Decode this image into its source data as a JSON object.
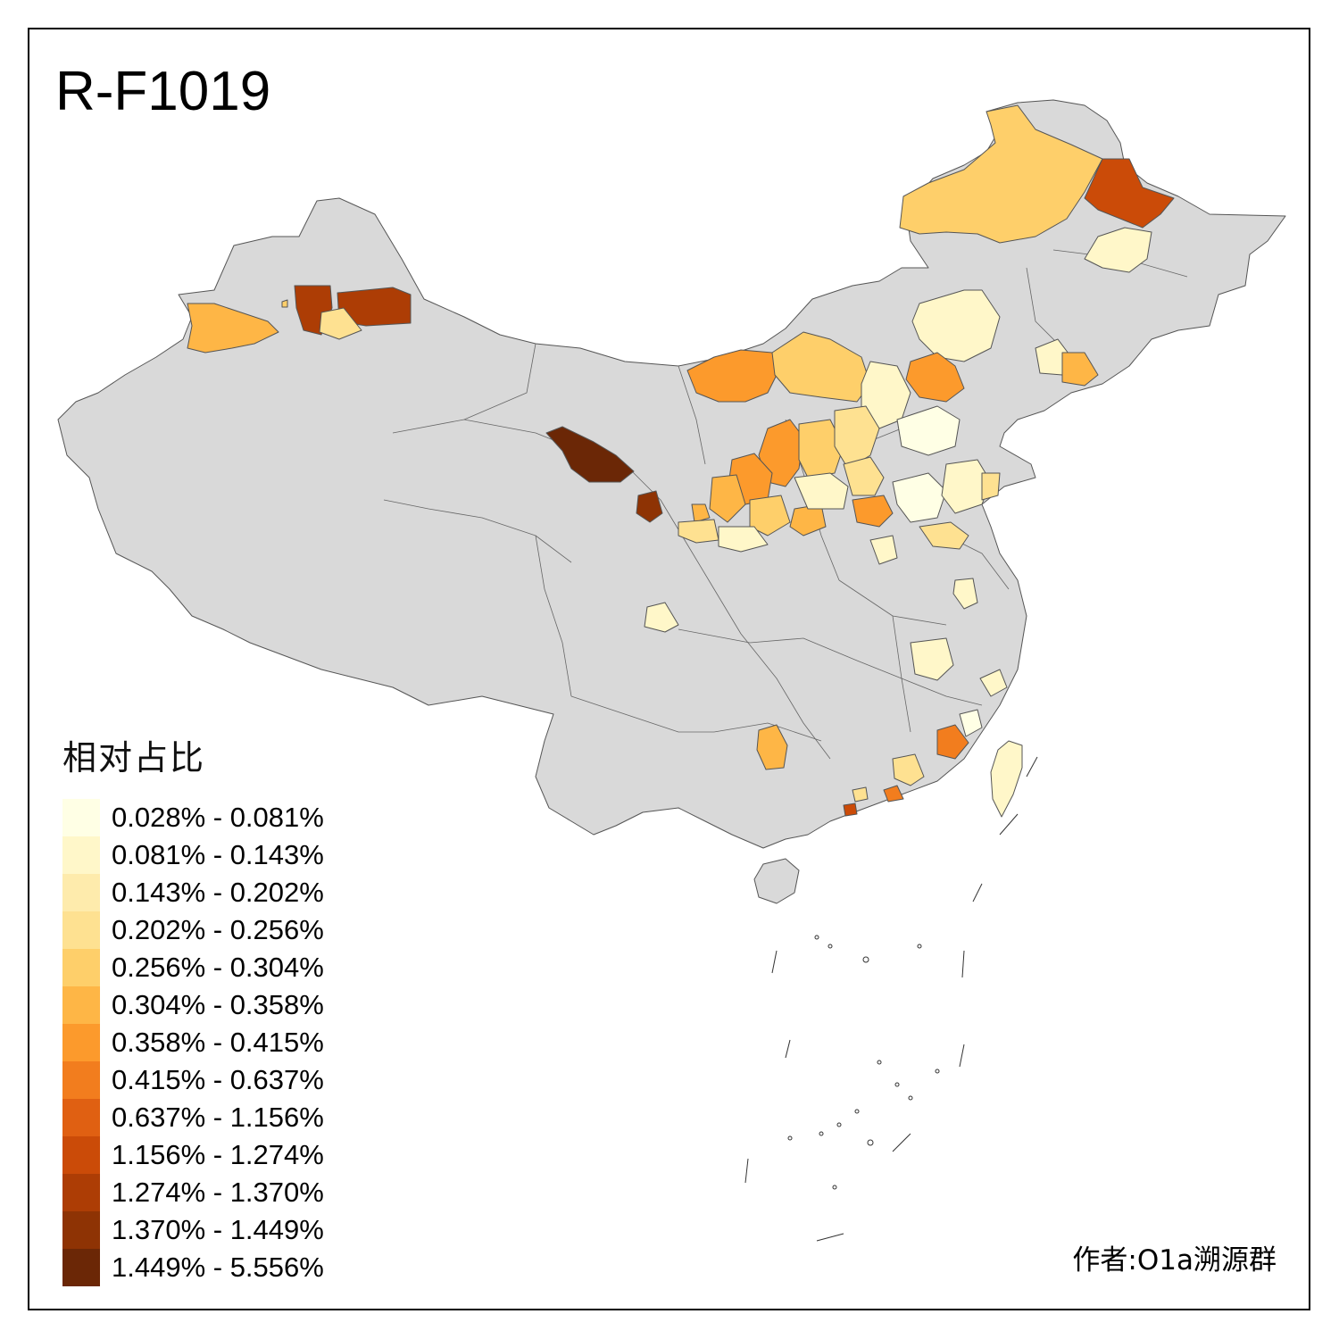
{
  "title": "R-F1019",
  "legend": {
    "title": "相对占比",
    "classes": [
      {
        "label": "0.028% - 0.081%",
        "color": "#ffffe5"
      },
      {
        "label": "0.081% - 0.143%",
        "color": "#fff7c9"
      },
      {
        "label": "0.143% - 0.202%",
        "color": "#feebac"
      },
      {
        "label": "0.202% - 0.256%",
        "color": "#fee191"
      },
      {
        "label": "0.256% - 0.304%",
        "color": "#fecf6a"
      },
      {
        "label": "0.304% - 0.358%",
        "color": "#feb646"
      },
      {
        "label": "0.358% - 0.415%",
        "color": "#fc9a2c"
      },
      {
        "label": "0.415% - 0.637%",
        "color": "#f27d1e"
      },
      {
        "label": "0.637% - 1.156%",
        "color": "#e06012"
      },
      {
        "label": "1.156% - 1.274%",
        "color": "#cb4b08"
      },
      {
        "label": "1.274% - 1.370%",
        "color": "#ad3d05"
      },
      {
        "label": "1.370% - 1.449%",
        "color": "#8e3304"
      },
      {
        "label": "1.449% - 5.556%",
        "color": "#6b2706"
      }
    ]
  },
  "credit": "作者:O1a溯源群",
  "no_data_color": "#d9d9d9"
}
